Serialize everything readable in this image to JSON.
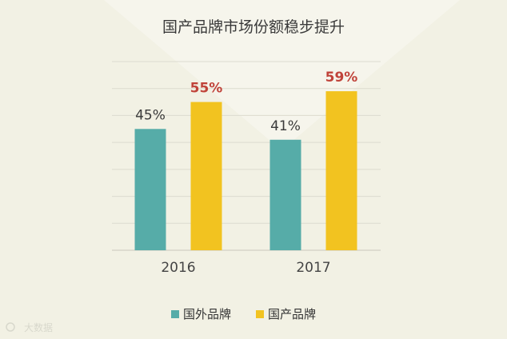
{
  "chart_data": {
    "type": "bar",
    "title": "国产品牌市场份额稳步提升",
    "categories": [
      "2016",
      "2017"
    ],
    "series": [
      {
        "name": "国外品牌",
        "color": "#56aca8",
        "values": [
          45,
          41
        ],
        "labels": [
          "45%",
          "41%"
        ]
      },
      {
        "name": "国产品牌",
        "color": "#f2c320",
        "values": [
          55,
          59
        ],
        "labels": [
          "55%",
          "59%"
        ]
      }
    ],
    "ylim": [
      0,
      70
    ],
    "grid": true,
    "legend_position": "bottom"
  },
  "watermark": "大数据"
}
